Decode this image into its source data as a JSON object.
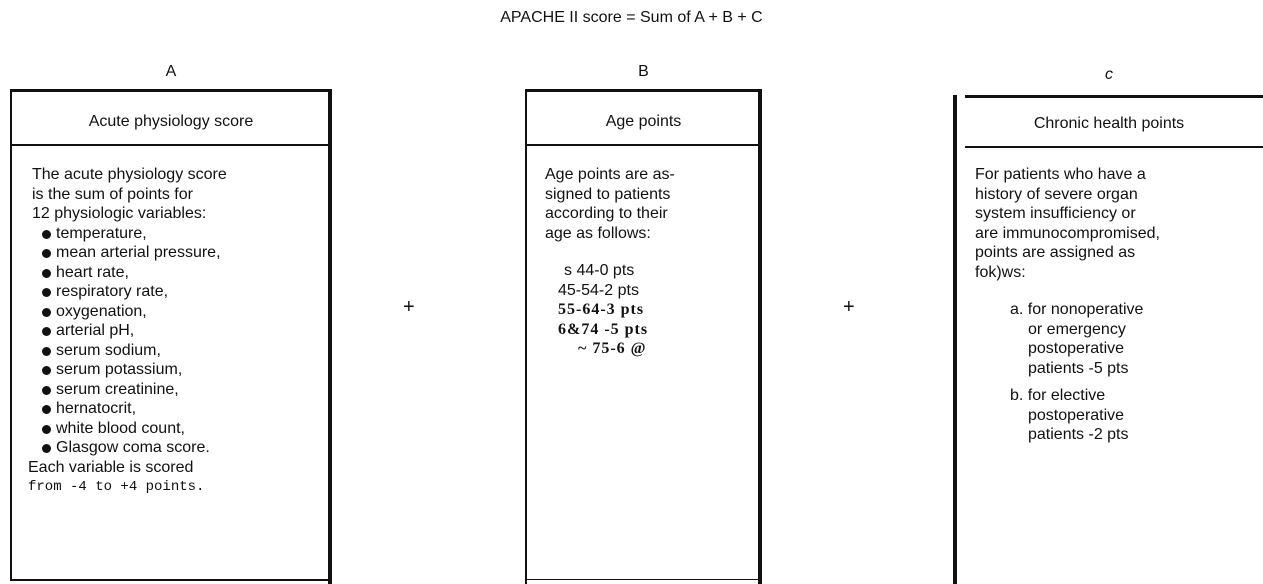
{
  "title": "APACHE II score = Sum of A + B + C",
  "operators": [
    "+",
    "+"
  ],
  "panels": [
    {
      "letter": "A",
      "heading": "Acute physiology score",
      "intro": [
        "The acute physiology score",
        "is the sum of points for",
        "12 physiologic variables:"
      ],
      "items": [
        "temperature,",
        "mean arterial pressure,",
        "heart rate,",
        "respiratory rate,",
        "oxygenation,",
        "arterial pH,",
        "serum sodium,",
        "serum potassium,",
        "serum creatinine,",
        "hernatocrit,",
        "white blood count,",
        "Glasgow coma score."
      ],
      "outro": [
        "Each variable is scored",
        "from -4 to +4 points."
      ]
    },
    {
      "letter": "B",
      "heading": "Age points",
      "intro": [
        "Age points are as-",
        "signed to patients",
        "according to their",
        "age as follows:"
      ],
      "items": [
        "s 44-0 pts",
        "45-54-2 pts",
        "55-64-3 pts",
        "6&74 -5 pts",
        "~ 75-6 @"
      ]
    },
    {
      "letter": "c",
      "heading": "Chronic health points",
      "intro": [
        "For patients who have a",
        "history of severe organ",
        "system insufficiency or",
        "are immunocompromised,",
        "points are assigned as",
        "fok)ws:"
      ],
      "options": [
        [
          "a. for nonoperative",
          "or emergency",
          "postoperative",
          "patients -5 pts"
        ],
        [
          "b. for elective",
          "postoperative",
          "patients -2 pts"
        ]
      ]
    }
  ]
}
